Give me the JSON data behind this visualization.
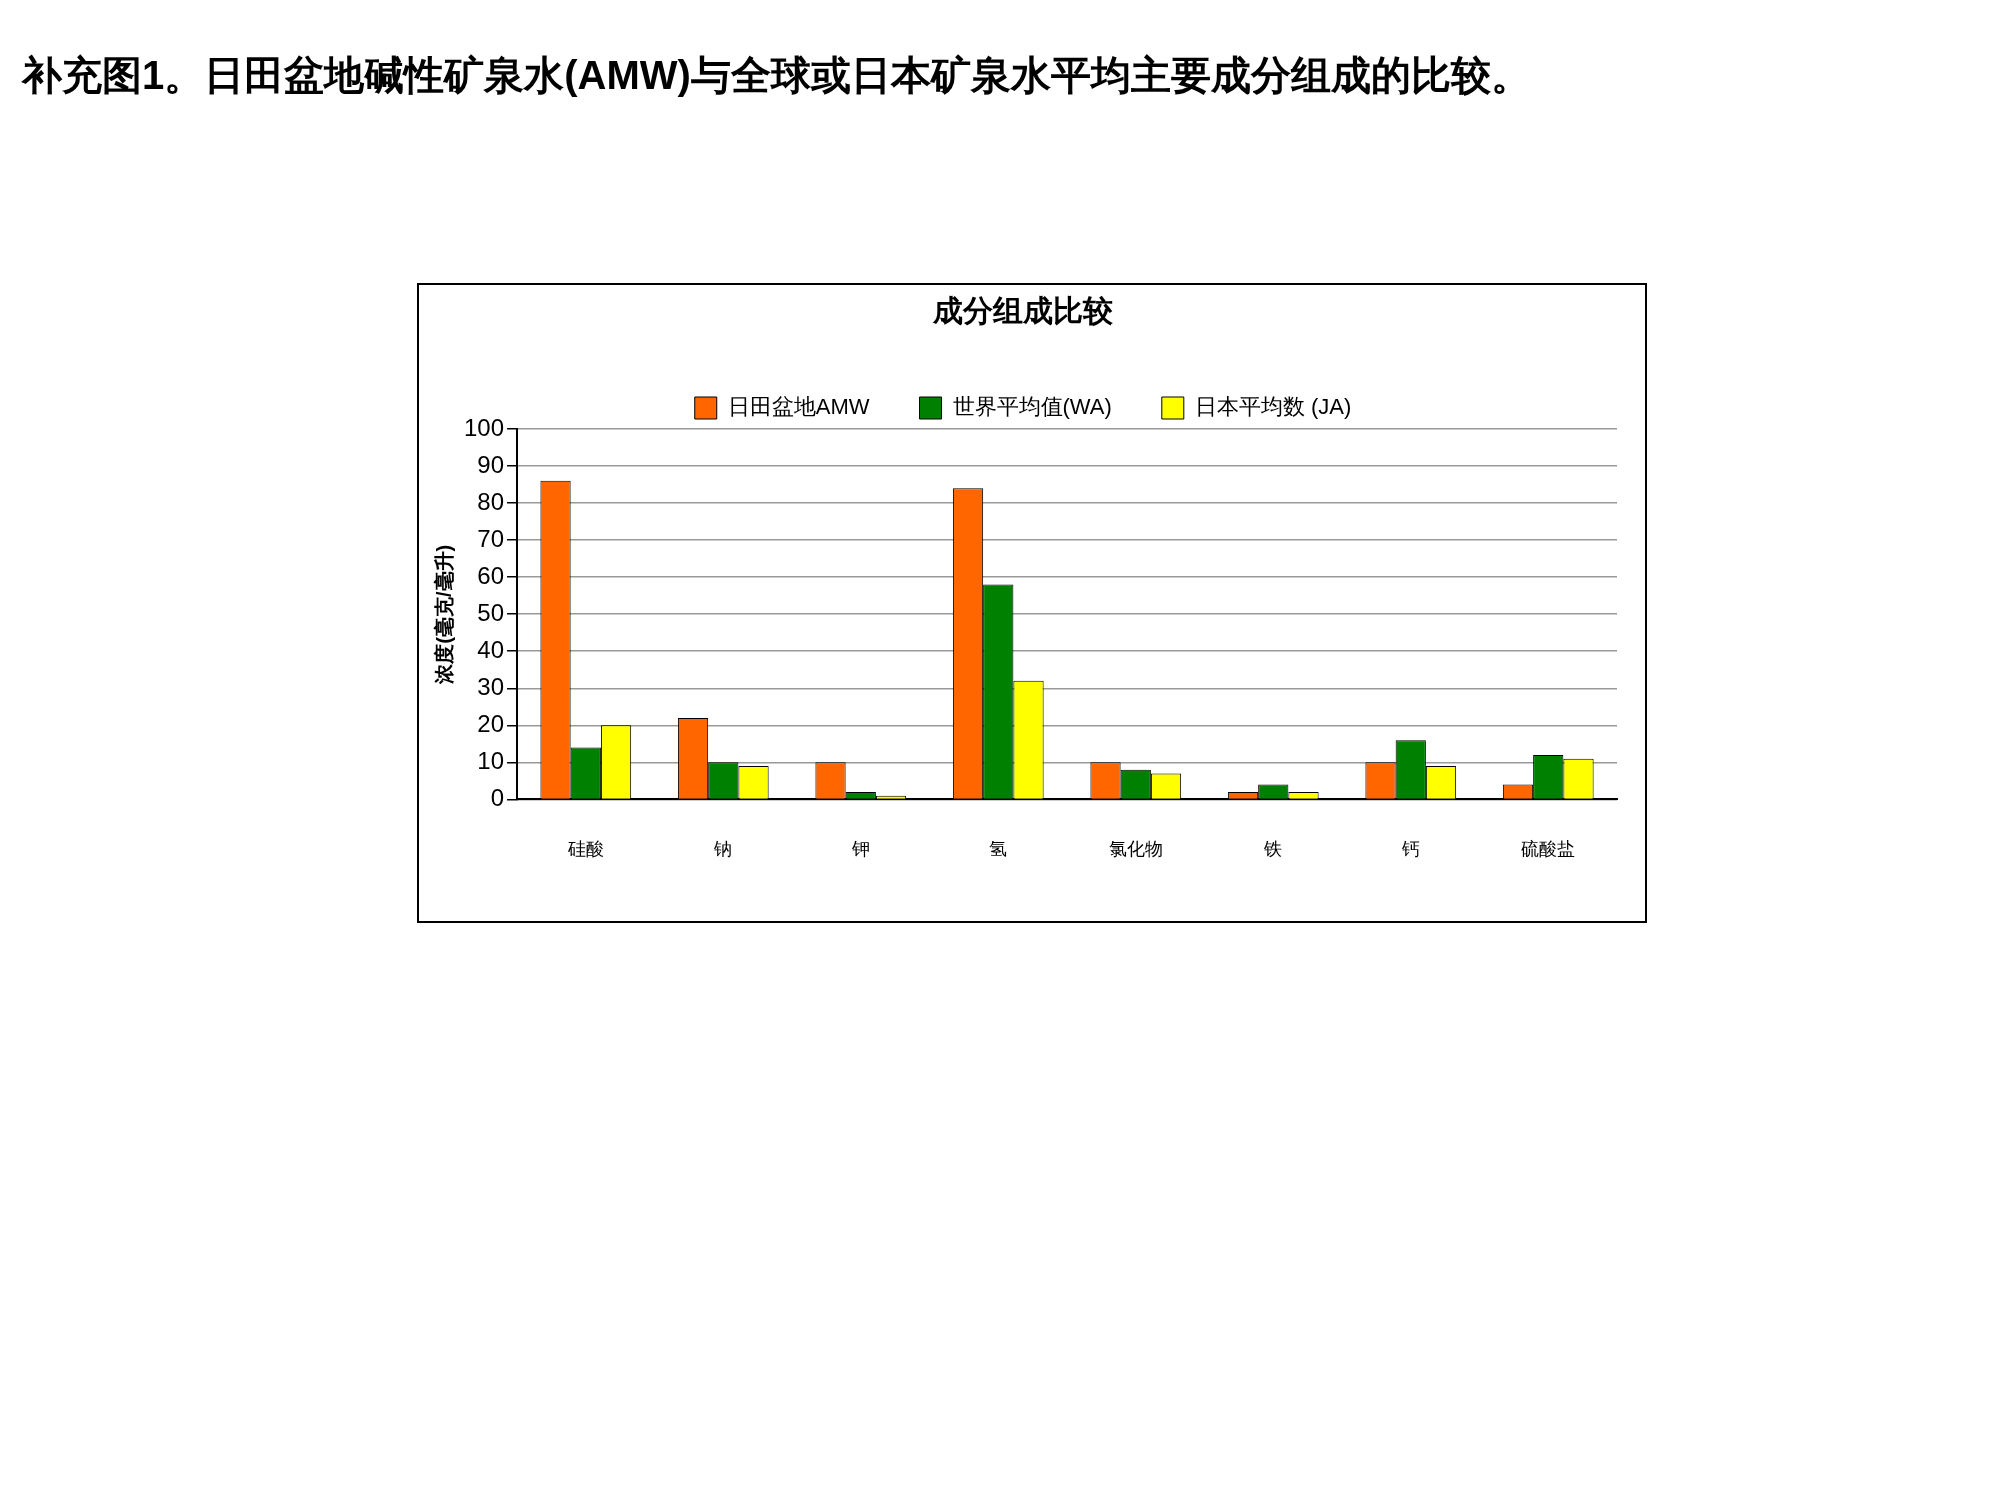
{
  "chart_data": {
    "type": "bar",
    "title": "补充图1。日田盆地碱性矿泉水(AMW)与全球或日本矿泉水平均主要成分组成的比较。",
    "subtitle": "成分组成比较",
    "ylabel": "浓度(毫克/毫升)",
    "categories": [
      "硅酸",
      "钠",
      "钾",
      "氢",
      "氯化物",
      "铁",
      "钙",
      "硫酸盐"
    ],
    "series": [
      {
        "name": "日田盆地AMW",
        "color": "#ff6600",
        "values": [
          86,
          22,
          10,
          84,
          10,
          2,
          10,
          4
        ]
      },
      {
        "name": "世界平均值(WA)",
        "color": "#008000",
        "values": [
          14,
          10,
          2,
          58,
          8,
          4,
          16,
          12
        ]
      },
      {
        "name": "日本平均数 (JA)",
        "color": "#ffff00",
        "values": [
          20,
          9,
          1,
          32,
          7,
          2,
          9,
          11
        ]
      }
    ],
    "ylim": [
      0,
      100
    ],
    "yticks": [
      0,
      10,
      20,
      30,
      40,
      50,
      60,
      70,
      80,
      90,
      100
    ],
    "grid": "y",
    "legend": "top"
  }
}
